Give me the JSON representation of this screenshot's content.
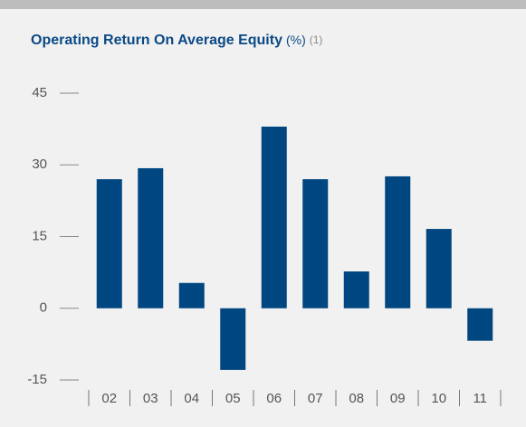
{
  "chart_data": {
    "type": "bar",
    "title": "Operating Return On Average Equity",
    "unit": "(%)",
    "footnote": "(1)",
    "categories": [
      "02",
      "03",
      "04",
      "05",
      "06",
      "07",
      "08",
      "09",
      "10",
      "11"
    ],
    "values": [
      27.0,
      29.3,
      5.3,
      -12.9,
      38.0,
      27.0,
      7.7,
      27.6,
      16.6,
      -6.8
    ],
    "color": "#004680",
    "ylim": [
      -15,
      45
    ],
    "yticks": [
      -15,
      0,
      15,
      30,
      45
    ]
  }
}
